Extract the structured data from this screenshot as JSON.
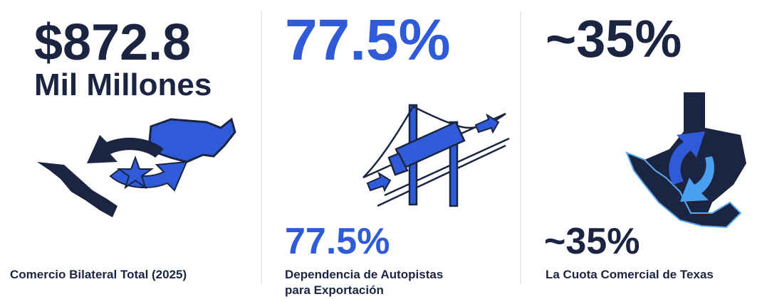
{
  "panels": [
    {
      "headline": "$872.8",
      "subline": "Mil Millones",
      "caption": [
        "Comercio Bilateral Total (2025)"
      ]
    },
    {
      "headline": "77.5%",
      "secondary": "77.5%",
      "caption": [
        "Dependencia de Autopistas",
        "para Exportación"
      ]
    },
    {
      "headline": "~35%",
      "secondary": "~35%",
      "caption": [
        "La Cuota Comercial de Texas"
      ]
    }
  ]
}
